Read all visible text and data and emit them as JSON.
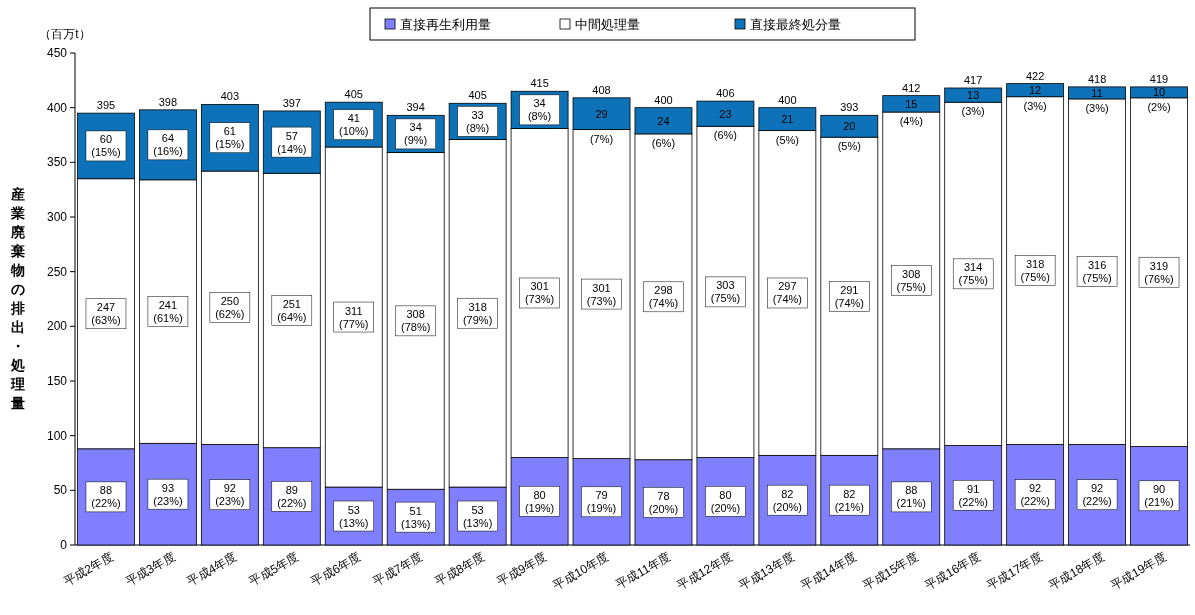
{
  "chart_data": {
    "type": "bar",
    "stacked": true,
    "legend": "top",
    "ylabel": "産業廃棄物の排出・処理量",
    "annotations": [
      "（百万t）"
    ],
    "categories": [
      "平成2年度",
      "平成3年度",
      "平成4年度",
      "平成5年度",
      "平成6年度",
      "平成7年度",
      "平成8年度",
      "平成9年度",
      "平成10年度",
      "平成11年度",
      "平成12年度",
      "平成13年度",
      "平成14年度",
      "平成15年度",
      "平成16年度",
      "平成17年度",
      "平成18年度",
      "平成19年度"
    ],
    "ylim": [
      0,
      450
    ],
    "yticks": [
      0,
      50,
      100,
      150,
      200,
      250,
      300,
      350,
      400,
      450
    ],
    "series": [
      {
        "name": "直接再生利用量",
        "color": "#8080ff",
        "values": [
          88,
          93,
          92,
          89,
          53,
          51,
          53,
          80,
          79,
          78,
          80,
          82,
          82,
          88,
          91,
          92,
          92,
          90
        ],
        "value_labels": [
          "88\n(22%)",
          "93\n(23%)",
          "92\n(23%)",
          "89\n(22%)",
          "53\n(13%)",
          "51\n(13%)",
          "53\n(13%)",
          "80\n(19%)",
          "79\n(19%)",
          "78\n(20%)",
          "80\n(20%)",
          "82\n(20%)",
          "82\n(21%)",
          "88\n(21%)",
          "91\n(22%)",
          "92\n(22%)",
          "92\n(22%)",
          "90\n(21%)"
        ]
      },
      {
        "name": "中間処理量",
        "color": "#ffffff",
        "values": [
          247,
          241,
          250,
          251,
          311,
          308,
          318,
          301,
          301,
          298,
          303,
          297,
          291,
          308,
          314,
          318,
          316,
          319
        ],
        "value_labels": [
          "247\n(63%)",
          "241\n(61%)",
          "250\n(62%)",
          "251\n(64%)",
          "311\n(77%)",
          "308\n(78%)",
          "318\n(79%)",
          "301\n(73%)",
          "301\n(73%)",
          "298\n(74%)",
          "303\n(75%)",
          "297\n(74%)",
          "291\n(74%)",
          "308\n(75%)",
          "314\n(75%)",
          "318\n(75%)",
          "316\n(75%)",
          "319\n(76%)"
        ]
      },
      {
        "name": "直接最終処分量",
        "color": "#0e72b8",
        "values": [
          60,
          64,
          61,
          57,
          41,
          34,
          33,
          34,
          29,
          24,
          23,
          21,
          20,
          15,
          13,
          12,
          11,
          10
        ],
        "value_labels": [
          "60\n(15%)",
          "64\n(16%)",
          "61\n(15%)",
          "57\n(14%)",
          "41\n(10%)",
          "34\n(9%)",
          "33\n(8%)",
          "34\n(8%)",
          "29\n(7%)",
          "24\n(6%)",
          "23\n(6%)",
          "21\n(5%)",
          "20\n(5%)",
          "15\n(4%)",
          "13\n(3%)",
          "12\n(3%)",
          "11\n(3%)",
          "10\n(2%)"
        ]
      }
    ],
    "totals": [
      "395",
      "398",
      "403",
      "397",
      "405",
      "394",
      "405",
      "415",
      "408",
      "400",
      "406",
      "400",
      "393",
      "412",
      "417",
      "422",
      "418",
      "419"
    ]
  }
}
